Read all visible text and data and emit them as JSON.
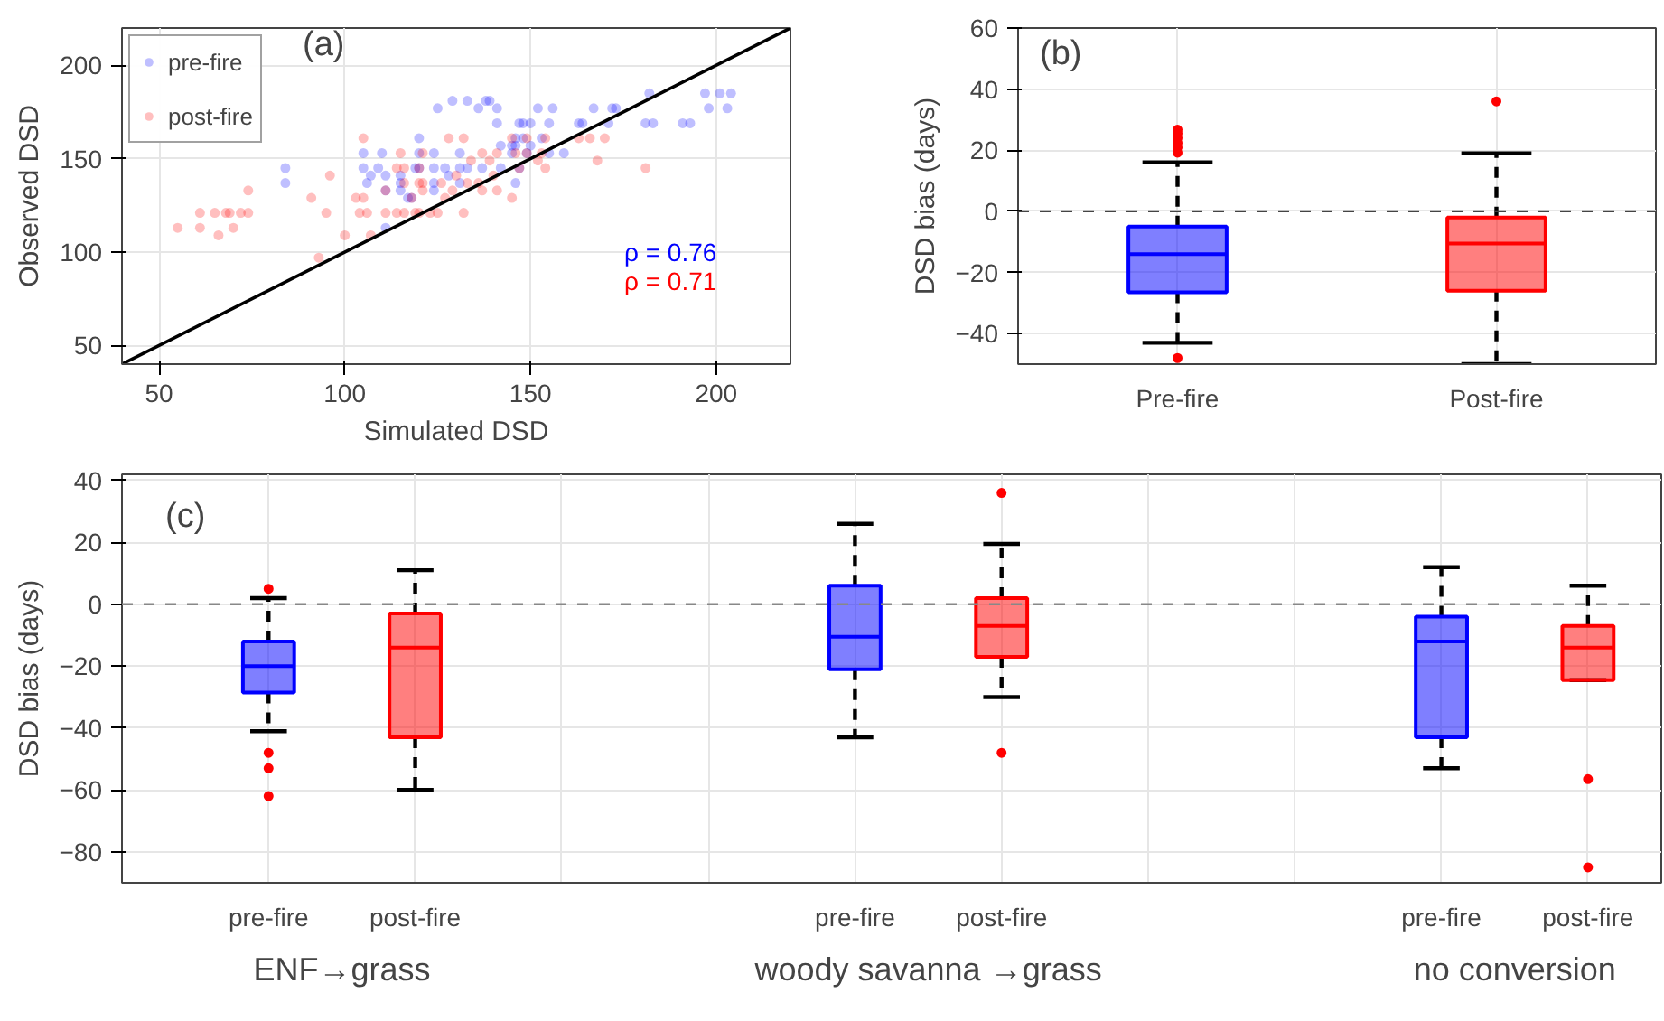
{
  "chart_data": [
    {
      "type": "scatter",
      "xlabel": "Simulated DSD",
      "ylabel": "Observed DSD",
      "xlim": [
        40,
        220
      ],
      "ylim": [
        40,
        220
      ],
      "xticks": [
        50,
        100,
        150,
        200
      ],
      "yticks": [
        50,
        100,
        150,
        200
      ],
      "grid": true,
      "legend": "top left",
      "annotations": [
        "(a)",
        "ρ = 0.76",
        "ρ = 0.71"
      ],
      "series": [
        {
          "name": "pre-fire",
          "color": "#0000ff",
          "marker": "circle",
          "x": [
            182,
            197,
            201,
            204,
            129,
            133,
            138,
            139,
            125,
            136,
            141,
            152,
            156,
            167,
            172,
            173,
            198,
            203,
            141,
            147,
            148,
            150,
            155,
            163,
            164,
            171,
            181,
            183,
            191,
            193,
            120,
            146,
            148,
            153,
            142,
            145,
            146,
            150,
            105,
            110,
            120,
            124,
            131,
            145,
            149,
            155,
            159,
            84,
            105,
            109,
            119,
            120,
            124,
            127,
            131,
            133,
            137,
            142,
            147,
            107,
            111,
            115,
            128,
            84,
            106,
            115,
            124,
            131,
            146,
            111,
            115,
            124,
            117,
            118,
            111
          ],
          "values": [
            185,
            185,
            185,
            185,
            181,
            181,
            181,
            181,
            177,
            177,
            177,
            177,
            177,
            177,
            177,
            177,
            177,
            177,
            169,
            169,
            169,
            169,
            169,
            169,
            169,
            169,
            169,
            169,
            169,
            169,
            161,
            161,
            161,
            161,
            157,
            157,
            157,
            157,
            153,
            153,
            153,
            153,
            153,
            153,
            153,
            153,
            153,
            145,
            145,
            145,
            145,
            145,
            145,
            145,
            145,
            145,
            145,
            145,
            145,
            141,
            141,
            141,
            141,
            137,
            137,
            137,
            137,
            137,
            137,
            133,
            133,
            133,
            129,
            129,
            113
          ]
        },
        {
          "name": "post-fire",
          "color": "#ff0000",
          "marker": "circle",
          "x": [
            105,
            128,
            132,
            145,
            149,
            154,
            163,
            166,
            170,
            115,
            121,
            137,
            141,
            146,
            149,
            153,
            134,
            139,
            152,
            168,
            114,
            116,
            120,
            147,
            154,
            181,
            96,
            130,
            140,
            116,
            120,
            121,
            126,
            133,
            136,
            74,
            111,
            121,
            129,
            137,
            141,
            91,
            103,
            105,
            118,
            127,
            145,
            61,
            65,
            68,
            69,
            72,
            74,
            95,
            104,
            106,
            111,
            114,
            116,
            119,
            120,
            123,
            125,
            132,
            55,
            61,
            70,
            66,
            100,
            107,
            93
          ],
          "values": [
            161,
            161,
            161,
            161,
            161,
            161,
            161,
            161,
            161,
            153,
            153,
            153,
            153,
            153,
            153,
            153,
            149,
            149,
            149,
            149,
            145,
            145,
            145,
            145,
            145,
            145,
            141,
            141,
            141,
            137,
            137,
            137,
            137,
            137,
            137,
            133,
            133,
            133,
            133,
            133,
            133,
            129,
            129,
            129,
            129,
            129,
            129,
            121,
            121,
            121,
            121,
            121,
            121,
            121,
            121,
            121,
            121,
            121,
            121,
            121,
            121,
            121,
            121,
            121,
            113,
            113,
            113,
            109,
            109,
            109,
            97
          ]
        },
        {
          "type": "line",
          "color": "#000000",
          "x": [
            40,
            220
          ],
          "values": [
            40,
            220
          ]
        }
      ]
    },
    {
      "type": "box",
      "ylabel": "DSD bias (days)",
      "categories": [
        "Pre-fire",
        "Post-fire"
      ],
      "ylim": [
        -50,
        60
      ],
      "yticks": [
        -40,
        -20,
        0,
        20,
        40,
        60
      ],
      "grid": true,
      "colors": [
        "#0000ff",
        "#ff0000"
      ],
      "annotations": [
        "(b)"
      ],
      "ref_lines": [
        {
          "axis": "y",
          "value": 0,
          "line_style": "dashed",
          "color": "#444444"
        }
      ],
      "boxes": [
        {
          "low": -43,
          "q1": -26.5,
          "median": -14,
          "q3": -5,
          "high": 16,
          "outliers": [
            26.7,
            25.5,
            24,
            22.4,
            20.9,
            19.2,
            -48
          ]
        },
        {
          "low": -50,
          "q1": -26,
          "median": -10.5,
          "q3": -2,
          "high": 19,
          "outliers": [
            36
          ]
        }
      ]
    },
    {
      "type": "box",
      "ylabel": "DSD bias (days)",
      "categories": [
        "pre-fire",
        "post-fire",
        null,
        null,
        "pre-fire",
        "post-fire",
        null,
        null,
        "pre-fire",
        "post-fire"
      ],
      "ylim": [
        -90,
        42
      ],
      "yticks": [
        -80,
        -60,
        -40,
        -20,
        0,
        20,
        40
      ],
      "grid": true,
      "colors": [
        "#0000ff",
        "#ff0000",
        null,
        null,
        "#0000ff",
        "#ff0000",
        null,
        null,
        "#0000ff",
        "#ff0000"
      ],
      "annotations": [
        "(c)",
        "ENF→grass",
        "woody savanna →grass",
        "no conversion"
      ],
      "ref_lines": [
        {
          "axis": "y",
          "value": 0,
          "line_style": "dashed",
          "color": "#888888"
        }
      ],
      "boxes": [
        {
          "low": -41,
          "q1": -28.5,
          "median": -20,
          "q3": -12,
          "high": 2,
          "outliers": [
            5,
            -48,
            -53,
            -62
          ]
        },
        {
          "low": -60,
          "q1": -43,
          "median": -14,
          "q3": -3,
          "high": 11
        },
        null,
        null,
        {
          "low": -43,
          "q1": -21,
          "median": -10.5,
          "q3": 6,
          "high": 26
        },
        {
          "low": -30,
          "q1": -17,
          "median": -7,
          "q3": 2,
          "high": 19.5,
          "outliers": [
            36,
            -48
          ]
        },
        null,
        null,
        {
          "low": -53,
          "q1": -43,
          "median": -12,
          "q3": -4,
          "high": 12
        },
        {
          "low": -24.5,
          "q1": -24.5,
          "median": -14,
          "q3": -7,
          "high": 6,
          "outliers": [
            -56.5,
            -85
          ]
        }
      ]
    }
  ]
}
